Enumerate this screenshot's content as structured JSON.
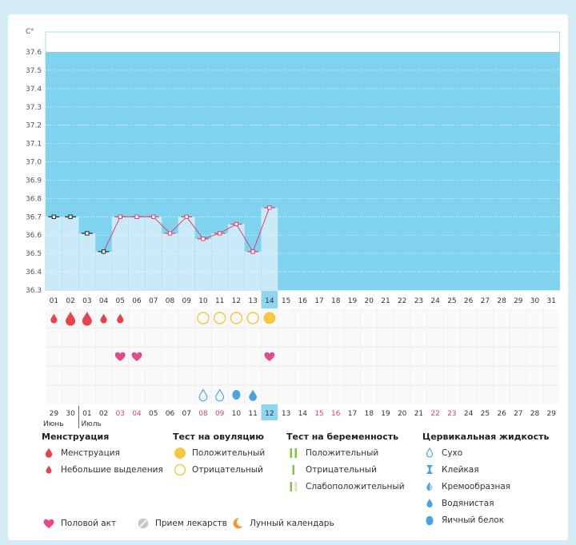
{
  "chart_data": {
    "type": "line",
    "title": "",
    "ylabel": "C°",
    "ylim": [
      36.3,
      37.6
    ],
    "y_ticks": [
      "37.6",
      "37.5",
      "37.4",
      "37.3",
      "37.2",
      "37.1",
      "37.0",
      "36.9",
      "36.8",
      "36.7",
      "36.6",
      "36.5",
      "36.4",
      "36.3"
    ],
    "x_days": [
      "01",
      "02",
      "03",
      "04",
      "05",
      "06",
      "07",
      "08",
      "09",
      "10",
      "11",
      "12",
      "13",
      "14",
      "15",
      "16",
      "17",
      "18",
      "19",
      "20",
      "21",
      "22",
      "23",
      "24",
      "25",
      "26",
      "27",
      "28",
      "29",
      "30",
      "31"
    ],
    "today_index": 13,
    "series": [
      {
        "name": "temperature",
        "values": [
          36.7,
          36.7,
          36.61,
          36.51,
          36.7,
          36.7,
          36.7,
          36.61,
          36.7,
          36.58,
          36.61,
          36.66,
          36.51,
          36.75
        ]
      }
    ],
    "no_line_to": 3,
    "cycle_dates": [
      "29",
      "30",
      "01",
      "02",
      "03",
      "04",
      "05",
      "06",
      "07",
      "08",
      "09",
      "10",
      "11",
      "12",
      "13",
      "14",
      "15",
      "16",
      "17",
      "18",
      "19",
      "20",
      "21",
      "22",
      "23",
      "24",
      "25",
      "26",
      "27",
      "28",
      "29"
    ],
    "cycle_highlight": [
      4,
      5,
      9,
      10,
      16,
      17,
      23,
      24
    ],
    "month_labels": [
      "Июнь",
      "Июль"
    ],
    "menstruation": [
      "spotting",
      "heavy",
      "heavy",
      "spotting",
      "spotting"
    ],
    "ovulation_tests": [
      null,
      null,
      null,
      null,
      null,
      null,
      null,
      null,
      null,
      "negative",
      "negative",
      "negative",
      "negative",
      "positive"
    ],
    "intercourse_days": [
      4,
      5,
      13
    ],
    "cervical_fluid": [
      null,
      null,
      null,
      null,
      null,
      null,
      null,
      null,
      null,
      "dry",
      "dry",
      "egg-white",
      "watery"
    ],
    "moon_day": 12
  },
  "legend": {
    "menstruation": {
      "title": "Менструация",
      "items": [
        "Менструация",
        "Небольшие выделения"
      ]
    },
    "ovulation": {
      "title": "Тест на овуляцию",
      "items": [
        "Положительный",
        "Отрицательный"
      ]
    },
    "pregnancy": {
      "title": "Тест на беременность",
      "items": [
        "Положительный",
        "Отрицательный",
        "Слабоположительный"
      ]
    },
    "cervical": {
      "title": "Цервикальная жидкость",
      "items": [
        "Сухо",
        "Клейкая",
        "Кремообразная",
        "Водянистая",
        "Яичный белок"
      ]
    },
    "bottom": [
      "Половой акт",
      "Прием лекарств",
      "Лунный календарь"
    ]
  },
  "colors": {
    "band": "#7fd3ef",
    "column": "#cbeaf8",
    "line": "#e23e6d",
    "today": "#8ed6f0",
    "blood": "#e8424f",
    "yellow": "#f5c842",
    "heart": "#e8478e",
    "drop": "#4aa3df",
    "green": "#82c341"
  }
}
